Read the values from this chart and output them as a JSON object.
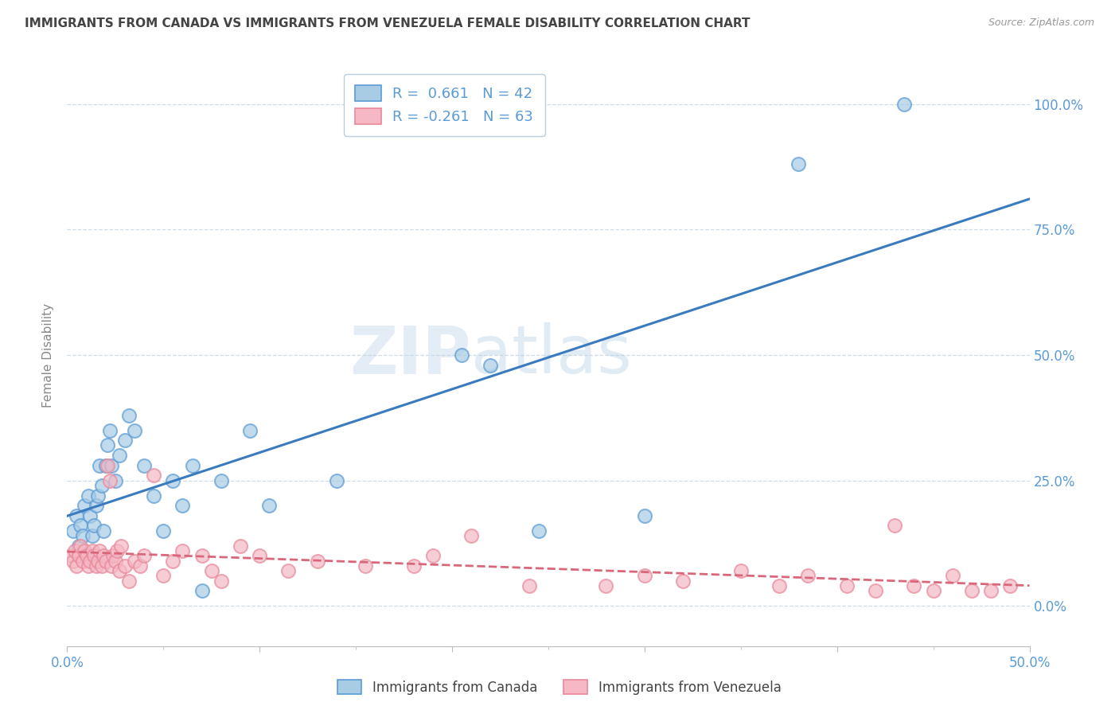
{
  "title": "IMMIGRANTS FROM CANADA VS IMMIGRANTS FROM VENEZUELA FEMALE DISABILITY CORRELATION CHART",
  "source": "Source: ZipAtlas.com",
  "ylabel": "Female Disability",
  "y_ticks": [
    0.0,
    25.0,
    50.0,
    75.0,
    100.0
  ],
  "x_min": 0.0,
  "x_max": 50.0,
  "y_min": -8.0,
  "y_max": 108.0,
  "legend_canada_r": "R =  0.661",
  "legend_canada_n": "N = 42",
  "legend_venezuela_r": "R = -0.261",
  "legend_venezuela_n": "N = 63",
  "canada_color": "#a8cce4",
  "venezuela_color": "#f5b8c4",
  "canada_edge_color": "#5b9bd5",
  "venezuela_edge_color": "#e8899a",
  "canada_line_color": "#3a7bbf",
  "venezuela_line_color": "#d9677a",
  "background_color": "#ffffff",
  "canada_points_x": [
    0.3,
    0.5,
    0.6,
    0.7,
    0.8,
    0.9,
    1.0,
    1.1,
    1.2,
    1.3,
    1.4,
    1.5,
    1.6,
    1.7,
    1.8,
    1.9,
    2.0,
    2.1,
    2.2,
    2.3,
    2.5,
    2.7,
    3.0,
    3.2,
    3.5,
    4.0,
    4.5,
    5.0,
    5.5,
    6.0,
    6.5,
    7.0,
    8.0,
    9.5,
    10.5,
    14.0,
    20.5,
    22.0,
    24.5,
    30.0,
    38.0,
    43.5
  ],
  "canada_points_y": [
    15.0,
    18.0,
    12.0,
    16.0,
    14.0,
    20.0,
    10.0,
    22.0,
    18.0,
    14.0,
    16.0,
    20.0,
    22.0,
    28.0,
    24.0,
    15.0,
    28.0,
    32.0,
    35.0,
    28.0,
    25.0,
    30.0,
    33.0,
    38.0,
    35.0,
    28.0,
    22.0,
    15.0,
    25.0,
    20.0,
    28.0,
    3.0,
    25.0,
    35.0,
    20.0,
    25.0,
    50.0,
    48.0,
    15.0,
    18.0,
    88.0,
    100.0
  ],
  "venezuela_points_x": [
    0.2,
    0.3,
    0.4,
    0.5,
    0.6,
    0.7,
    0.8,
    0.9,
    1.0,
    1.1,
    1.2,
    1.3,
    1.4,
    1.5,
    1.6,
    1.7,
    1.8,
    1.9,
    2.0,
    2.1,
    2.2,
    2.3,
    2.4,
    2.5,
    2.6,
    2.7,
    2.8,
    3.0,
    3.2,
    3.5,
    3.8,
    4.0,
    4.5,
    5.0,
    5.5,
    6.0,
    7.0,
    7.5,
    8.0,
    9.0,
    10.0,
    11.5,
    13.0,
    15.5,
    18.0,
    19.0,
    21.0,
    24.0,
    28.0,
    30.0,
    32.0,
    35.0,
    37.0,
    38.5,
    40.5,
    42.0,
    43.0,
    44.0,
    45.0,
    46.0,
    47.0,
    48.0,
    49.0
  ],
  "venezuela_points_y": [
    10.0,
    9.0,
    11.0,
    8.0,
    10.0,
    12.0,
    9.0,
    11.0,
    10.0,
    8.0,
    9.0,
    11.0,
    10.0,
    8.0,
    9.0,
    11.0,
    8.0,
    10.0,
    9.0,
    28.0,
    25.0,
    8.0,
    10.0,
    9.0,
    11.0,
    7.0,
    12.0,
    8.0,
    5.0,
    9.0,
    8.0,
    10.0,
    26.0,
    6.0,
    9.0,
    11.0,
    10.0,
    7.0,
    5.0,
    12.0,
    10.0,
    7.0,
    9.0,
    8.0,
    8.0,
    10.0,
    14.0,
    4.0,
    4.0,
    6.0,
    5.0,
    7.0,
    4.0,
    6.0,
    4.0,
    3.0,
    16.0,
    4.0,
    3.0,
    6.0,
    3.0,
    3.0,
    4.0
  ]
}
